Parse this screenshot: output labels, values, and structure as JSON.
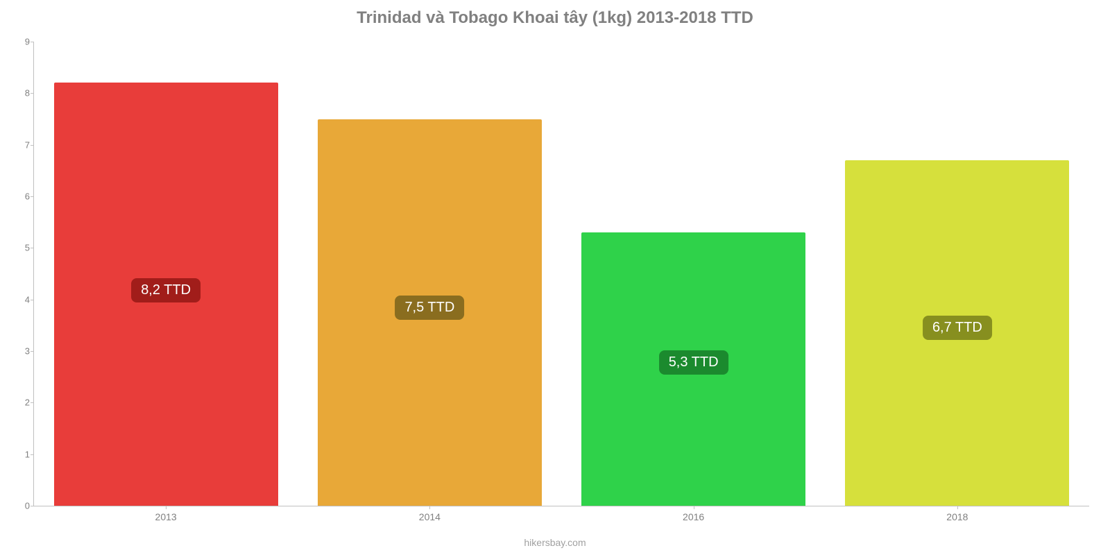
{
  "chart": {
    "type": "bar",
    "title": "Trinidad và Tobago Khoai tây (1kg) 2013-2018 TTD",
    "title_fontsize": 24,
    "title_color": "#808080",
    "background_color": "#ffffff",
    "axis_color": "#c0c0c0",
    "tick_label_color": "#808080",
    "ylim_min": 0,
    "ylim_max": 9,
    "ytick_step": 1,
    "unit_suffix": " TTD",
    "bar_width_pct": 85,
    "bars": [
      {
        "category": "2013",
        "value": 8.2,
        "label": "8,2 TTD",
        "bar_color": "#e83d3a",
        "badge_bg": "#a11d1a"
      },
      {
        "category": "2014",
        "value": 7.5,
        "label": "7,5 TTD",
        "bar_color": "#e8a838",
        "badge_bg": "#8a6d1f"
      },
      {
        "category": "2016",
        "value": 5.3,
        "label": "5,3 TTD",
        "bar_color": "#2fd24a",
        "badge_bg": "#1b8a2e"
      },
      {
        "category": "2018",
        "value": 6.7,
        "label": "6,7 TTD",
        "bar_color": "#d6e03c",
        "badge_bg": "#878f1f"
      }
    ]
  },
  "footer_text": "hikersbay.com"
}
